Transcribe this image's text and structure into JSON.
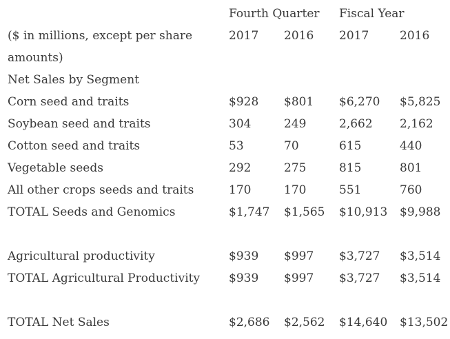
{
  "header": {
    "group1": "Fourth Quarter",
    "group2": "Fiscal Year",
    "units_line1": "($ in millions, except per share",
    "units_line2": "amounts)",
    "years": [
      "2017",
      "2016",
      "2017",
      "2016"
    ]
  },
  "section_title": "Net Sales by Segment",
  "rows": [
    {
      "label": "Corn seed and traits",
      "values": [
        "$928",
        "$801",
        "$6,270",
        "$5,825"
      ]
    },
    {
      "label": "Soybean seed and traits",
      "values": [
        "304",
        "249",
        "2,662",
        "2,162"
      ]
    },
    {
      "label": "Cotton seed and traits",
      "values": [
        "53",
        "70",
        "615",
        "440"
      ]
    },
    {
      "label": "Vegetable seeds",
      "values": [
        "292",
        "275",
        "815",
        "801"
      ]
    },
    {
      "label": "All other crops seeds and traits",
      "values": [
        "170",
        "170",
        "551",
        "760"
      ]
    },
    {
      "label": "TOTAL Seeds and Genomics",
      "values": [
        "$1,747",
        "$1,565",
        "$10,913",
        "$9,988"
      ]
    },
    {
      "label": "Agricultural productivity",
      "values": [
        "$939",
        "$997",
        "$3,727",
        "$3,514"
      ]
    },
    {
      "label": "TOTAL Agricultural Productivity",
      "values": [
        "$939",
        "$997",
        "$3,727",
        "$3,514"
      ]
    },
    {
      "label": "TOTAL Net Sales",
      "values": [
        "$2,686",
        "$2,562",
        "$14,640",
        "$13,502"
      ]
    }
  ]
}
